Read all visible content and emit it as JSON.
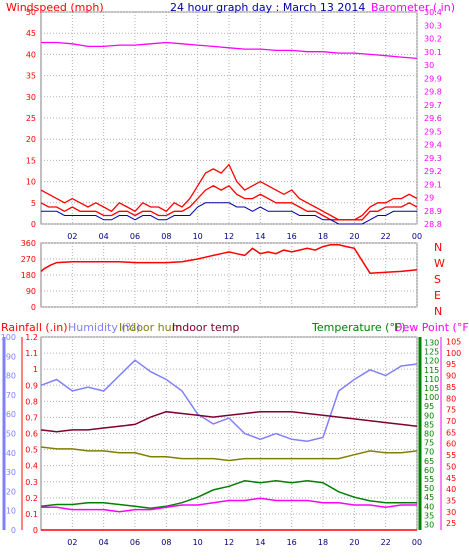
{
  "colors": {
    "wind": "#ff0000",
    "gust": "#ff0000",
    "wind_avg": "#0000aa",
    "barometer": "#ff00ff",
    "winddir": "#ff0000",
    "rainfall": "#ff0000",
    "humidity": "#8080ff",
    "indoor_hum": "#808000",
    "indoor_temp": "#800030",
    "temperature": "#008000",
    "dewpoint": "#ff00ff",
    "frame": "#808080",
    "grid": "#b0b0b0",
    "title": "#0000aa"
  },
  "chart_data": [
    {
      "type": "line",
      "title": "24 hour graph day : March 13 2014",
      "ylabel": "Windspeed (mph)",
      "y2label": "Barometer ( in)",
      "x_ticks": [
        "02",
        "04",
        "06",
        "08",
        "10",
        "12",
        "14",
        "16",
        "18",
        "20",
        "22",
        "00"
      ],
      "y_ticks": [
        "0",
        "5",
        "10",
        "15",
        "20",
        "25",
        "30",
        "35",
        "40",
        "45",
        "50"
      ],
      "y2_ticks": [
        "28.8",
        "28.9",
        "29",
        "29.1",
        "29.2",
        "29.3",
        "29.4",
        "29.5",
        "29.6",
        "29.7",
        "29.8",
        "29.9",
        "30",
        "30.1",
        "30.2",
        "30.3",
        "30.4"
      ],
      "ylim": [
        0,
        50
      ],
      "y2lim": [
        28.8,
        30.4
      ],
      "xlim": [
        0,
        24
      ],
      "series": [
        {
          "key": "gust",
          "x": [
            0,
            0.5,
            1,
            1.5,
            2,
            2.5,
            3,
            3.5,
            4,
            4.5,
            5,
            5.5,
            6,
            6.5,
            7,
            7.5,
            8,
            8.5,
            9,
            9.5,
            10,
            10.5,
            11,
            11.5,
            12,
            12.5,
            13,
            13.5,
            14,
            14.5,
            15,
            15.5,
            16,
            16.5,
            17,
            17.5,
            18,
            18.5,
            19,
            19.5,
            20,
            20.5,
            21,
            21.5,
            22,
            22.5,
            23,
            23.5,
            24
          ],
          "values": [
            8,
            7,
            6,
            5,
            6,
            5,
            4,
            5,
            4,
            3,
            5,
            4,
            3,
            5,
            4,
            4,
            3,
            5,
            4,
            6,
            9,
            12,
            13,
            12,
            14,
            10,
            8,
            9,
            10,
            9,
            8,
            7,
            8,
            6,
            5,
            4,
            3,
            2,
            1,
            1,
            1,
            2,
            4,
            5,
            5,
            6,
            6,
            7,
            6
          ]
        },
        {
          "key": "wind",
          "x": [
            0,
            0.5,
            1,
            1.5,
            2,
            2.5,
            3,
            3.5,
            4,
            4.5,
            5,
            5.5,
            6,
            6.5,
            7,
            7.5,
            8,
            8.5,
            9,
            9.5,
            10,
            10.5,
            11,
            11.5,
            12,
            12.5,
            13,
            13.5,
            14,
            14.5,
            15,
            15.5,
            16,
            16.5,
            17,
            17.5,
            18,
            18.5,
            19,
            19.5,
            20,
            20.5,
            21,
            21.5,
            22,
            22.5,
            23,
            23.5,
            24
          ],
          "values": [
            5,
            4,
            4,
            3,
            4,
            3,
            3,
            3,
            2,
            2,
            3,
            3,
            2,
            3,
            3,
            2,
            2,
            3,
            3,
            4,
            6,
            8,
            9,
            8,
            9,
            7,
            6,
            6,
            7,
            6,
            5,
            5,
            5,
            4,
            3,
            3,
            2,
            1,
            1,
            1,
            1,
            1,
            3,
            3,
            4,
            4,
            4,
            5,
            4
          ]
        },
        {
          "key": "wind_avg",
          "x": [
            0,
            0.5,
            1,
            1.5,
            2,
            2.5,
            3,
            3.5,
            4,
            4.5,
            5,
            5.5,
            6,
            6.5,
            7,
            7.5,
            8,
            8.5,
            9,
            9.5,
            10,
            10.5,
            11,
            11.5,
            12,
            12.5,
            13,
            13.5,
            14,
            14.5,
            15,
            15.5,
            16,
            16.5,
            17,
            17.5,
            18,
            18.5,
            19,
            19.5,
            20,
            20.5,
            21,
            21.5,
            22,
            22.5,
            23,
            23.5,
            24
          ],
          "values": [
            3,
            3,
            3,
            2,
            2,
            2,
            2,
            2,
            1,
            1,
            2,
            2,
            1,
            2,
            2,
            1,
            1,
            2,
            2,
            2,
            4,
            5,
            5,
            5,
            5,
            4,
            4,
            3,
            4,
            3,
            3,
            3,
            3,
            2,
            2,
            2,
            1,
            1,
            0,
            0,
            0,
            0,
            1,
            2,
            2,
            3,
            3,
            3,
            3
          ]
        },
        {
          "key": "barometer",
          "axis": "y2",
          "x": [
            0,
            1,
            2,
            3,
            4,
            5,
            6,
            7,
            8,
            9,
            10,
            11,
            12,
            13,
            14,
            15,
            16,
            17,
            18,
            19,
            20,
            21,
            22,
            23,
            24
          ],
          "values": [
            30.17,
            30.17,
            30.16,
            30.14,
            30.14,
            30.15,
            30.15,
            30.16,
            30.17,
            30.16,
            30.15,
            30.14,
            30.13,
            30.12,
            30.12,
            30.11,
            30.11,
            30.1,
            30.1,
            30.09,
            30.09,
            30.08,
            30.07,
            30.06,
            30.05
          ]
        }
      ]
    },
    {
      "type": "line",
      "right_labels": [
        "N",
        "W",
        "S",
        "E",
        "N"
      ],
      "y_ticks": [
        "0",
        "90",
        "180",
        "270",
        "360"
      ],
      "ylim": [
        0,
        360
      ],
      "xlim": [
        0,
        24
      ],
      "series": [
        {
          "key": "winddir",
          "x": [
            0,
            0.2,
            0.6,
            1,
            2,
            3,
            4,
            5,
            6,
            7,
            8,
            9,
            10,
            10.5,
            11,
            11.5,
            12,
            12.5,
            13,
            13.5,
            14,
            14.5,
            15,
            15.5,
            16,
            16.5,
            17,
            17.5,
            18,
            18.5,
            19,
            19.5,
            20,
            21,
            22,
            23,
            24
          ],
          "values": [
            200,
            215,
            235,
            250,
            255,
            255,
            255,
            255,
            250,
            250,
            250,
            255,
            270,
            280,
            290,
            300,
            310,
            300,
            290,
            330,
            300,
            310,
            300,
            320,
            310,
            320,
            330,
            320,
            340,
            350,
            350,
            340,
            330,
            190,
            195,
            200,
            210
          ]
        }
      ]
    },
    {
      "type": "line",
      "legend": [
        "Rainfall (.in)",
        "Humidity (%)",
        "Indoor hum",
        "Indoor temp",
        "Temperature (°F)",
        "Dew Point (°F)"
      ],
      "rain_ticks": [
        "0",
        "0.1",
        "0.2",
        "0.3",
        "0.4",
        "0.5",
        "0.6",
        "0.7",
        "0.8",
        "0.9",
        "1",
        "1.1",
        "1.2"
      ],
      "hum_ticks": [
        "0",
        "10",
        "20",
        "30",
        "40",
        "50",
        "60",
        "70",
        "80",
        "90",
        "100"
      ],
      "temp_ticks": [
        "30",
        "35",
        "40",
        "45",
        "50",
        "55",
        "60",
        "65",
        "70",
        "75",
        "80",
        "85",
        "90",
        "95",
        "100",
        "105",
        "110",
        "115",
        "120",
        "125",
        "130"
      ],
      "dew_ticks": [
        "25",
        "30",
        "35",
        "40",
        "45",
        "50",
        "55",
        "60",
        "65",
        "70",
        "75",
        "80",
        "85",
        "90",
        "95",
        "100",
        "105"
      ],
      "xlim": [
        0,
        24
      ],
      "rain_lim": [
        0,
        1.2
      ],
      "hum_lim": [
        0,
        100
      ],
      "temp_lim": [
        27,
        133
      ],
      "dew_lim": [
        22,
        107
      ],
      "series": [
        {
          "key": "humidity",
          "axis": "hum",
          "x": [
            0,
            1,
            2,
            3,
            4,
            5,
            6,
            7,
            8,
            9,
            10,
            11,
            12,
            13,
            14,
            15,
            16,
            17,
            18,
            19,
            20,
            21,
            22,
            23,
            24
          ],
          "values": [
            75,
            78,
            72,
            74,
            72,
            80,
            88,
            82,
            78,
            72,
            60,
            55,
            58,
            50,
            47,
            50,
            47,
            46,
            48,
            72,
            78,
            83,
            80,
            85,
            86
          ]
        },
        {
          "key": "indoor_temp",
          "axis": "temp",
          "x": [
            0,
            1,
            2,
            3,
            4,
            5,
            6,
            7,
            8,
            9,
            10,
            11,
            12,
            13,
            14,
            15,
            16,
            17,
            18,
            19,
            20,
            21,
            22,
            23,
            24
          ],
          "values": [
            82,
            81,
            82,
            82,
            83,
            84,
            85,
            89,
            92,
            91,
            90,
            89,
            90,
            91,
            92,
            92,
            92,
            91,
            90,
            89,
            88,
            87,
            86,
            85,
            84
          ]
        },
        {
          "key": "indoor_hum",
          "axis": "hum",
          "x": [
            0,
            1,
            2,
            3,
            4,
            5,
            6,
            7,
            8,
            9,
            10,
            11,
            12,
            13,
            14,
            15,
            16,
            17,
            18,
            19,
            20,
            21,
            22,
            23,
            24
          ],
          "values": [
            43,
            42,
            42,
            41,
            41,
            40,
            40,
            38,
            38,
            37,
            37,
            37,
            36,
            37,
            37,
            37,
            37,
            37,
            37,
            37,
            39,
            41,
            40,
            40,
            41
          ]
        },
        {
          "key": "temperature",
          "axis": "temp",
          "x": [
            0,
            1,
            2,
            3,
            4,
            5,
            6,
            7,
            8,
            9,
            10,
            11,
            12,
            13,
            14,
            15,
            16,
            17,
            18,
            19,
            20,
            21,
            22,
            23,
            24
          ],
          "values": [
            40,
            41,
            41,
            42,
            42,
            41,
            40,
            39,
            40,
            42,
            45,
            49,
            51,
            54,
            53,
            54,
            53,
            54,
            53,
            48,
            45,
            43,
            42,
            42,
            42
          ]
        },
        {
          "key": "dewpoint",
          "axis": "dew",
          "x": [
            0,
            1,
            2,
            3,
            4,
            5,
            6,
            7,
            8,
            9,
            10,
            11,
            12,
            13,
            14,
            15,
            16,
            17,
            18,
            19,
            20,
            21,
            22,
            23,
            24
          ],
          "values": [
            32,
            32,
            31,
            31,
            31,
            30,
            31,
            31,
            32,
            33,
            33,
            34,
            35,
            35,
            36,
            35,
            35,
            35,
            34,
            34,
            33,
            33,
            32,
            33,
            33
          ]
        },
        {
          "key": "rainfall",
          "axis": "rain",
          "x": [
            0,
            24
          ],
          "values": [
            0,
            0
          ]
        }
      ]
    }
  ]
}
